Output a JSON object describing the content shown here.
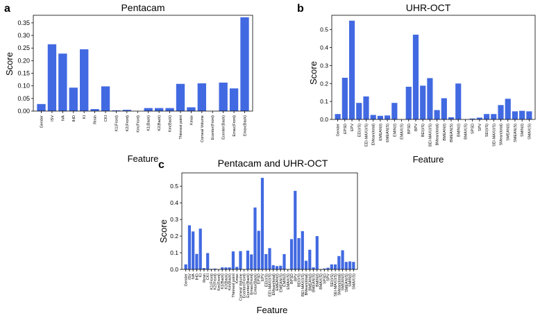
{
  "figure": {
    "bar_color": "#4169E1",
    "axis_color": "#000000",
    "background": "#ffffff"
  },
  "chart_data": [
    {
      "panel": "a",
      "type": "bar",
      "title": "Pentacam",
      "xlabel": "Feature",
      "ylabel": "Score",
      "ylim": [
        0,
        0.38
      ],
      "yticks": [
        "0.00",
        "0.05",
        "0.10",
        "0.15",
        "0.20",
        "0.25",
        "0.30",
        "0.35"
      ],
      "categories": [
        "Gender",
        "ISV",
        "IVA",
        "IHD",
        "KI",
        "Rmin",
        "CKI",
        "K1(Front)",
        "K2(Front)",
        "Km(Front)",
        "K1(Back)",
        "K2(Back)",
        "Km(Back)",
        "Thinnest point",
        "Kmax",
        "Corneal Volume",
        "Ecenter(Front)",
        "Ecenter(Back)",
        "Emax(Front)",
        "Emax(Back)"
      ],
      "values": [
        0.028,
        0.265,
        0.228,
        0.093,
        0.245,
        0.008,
        0.098,
        0.003,
        0.005,
        0.0,
        0.012,
        0.012,
        0.012,
        0.108,
        0.015,
        0.11,
        0.0,
        0.113,
        0.09,
        0.372
      ]
    },
    {
      "panel": "b",
      "type": "bar",
      "title": "UHR-OCT",
      "xlabel": "Feature",
      "ylabel": "Score",
      "ylim": [
        0,
        0.58
      ],
      "yticks": [
        "0.0",
        "0.1",
        "0.2",
        "0.3",
        "0.4",
        "0.5"
      ],
      "categories": [
        "Gender",
        "EPSD",
        "EPV",
        "EEI(I/S)",
        "EEI-MAX(I/S)",
        "EMean(total)",
        "EMEAN(I)",
        "EMEAN(S)",
        "EMIN(I)",
        "EMAX(S)",
        "BPSD",
        "BPV",
        "BEI(I/S)",
        "BEI-MAX(I/S)",
        "BMean(total)",
        "BMEAN(I)",
        "BMEAN(S)",
        "BMIN(I)",
        "BMAX(S)",
        "SPSD",
        "SPV",
        "SEI(I/S)",
        "SEI-MAX(I/S)",
        "SMean(total)",
        "SMEAN(I)",
        "SMEAN(S)",
        "SMIN(I)",
        "SMAX(S)"
      ],
      "values": [
        0.03,
        0.232,
        0.55,
        0.092,
        0.128,
        0.025,
        0.02,
        0.022,
        0.092,
        0.0,
        0.182,
        0.472,
        0.188,
        0.23,
        0.052,
        0.118,
        0.012,
        0.2,
        0.0,
        0.005,
        0.01,
        0.03,
        0.03,
        0.08,
        0.115,
        0.045,
        0.048,
        0.045
      ]
    },
    {
      "panel": "c",
      "type": "bar",
      "title": "Pentacam and UHR-OCT",
      "xlabel": "Feature",
      "ylabel": "Score",
      "ylim": [
        0,
        0.58
      ],
      "yticks": [
        "0.0",
        "0.1",
        "0.2",
        "0.3",
        "0.4",
        "0.5"
      ],
      "categories": [
        "Gender",
        "ISV",
        "IVA",
        "IHD",
        "KI",
        "Rmin",
        "CKI",
        "K1(Front)",
        "K2(Front)",
        "Km(Front)",
        "K1(Back)",
        "K2(Back)",
        "Km(Back)",
        "Thinnest point",
        "Kmax",
        "Corneal Volume",
        "Ecenter(Front)",
        "Ecenter(Back)",
        "Emax(Front)",
        "Emax(Back)",
        "EPSD",
        "EPV",
        "EEI(I/S)",
        "EEI-MAX(I/S)",
        "EMean(total)",
        "EMEAN(I)",
        "EMEAN(S)",
        "EMIN(I)",
        "EMAX(S)",
        "BPSD",
        "BPV",
        "BEI(I/S)",
        "BEI-MAX(I/S)",
        "BMean(total)",
        "BMEAN(I)",
        "BMEAN(S)",
        "BMIN(I)",
        "BMAX(S)",
        "SPSD",
        "SPV",
        "SEI(I/S)",
        "SEI-MAX(I/S)",
        "SMean(total)",
        "SMEAN(I)",
        "SMEAN(S)",
        "SMIN(I)",
        "SMAX(S)"
      ],
      "values": [
        0.03,
        0.265,
        0.228,
        0.093,
        0.245,
        0.008,
        0.098,
        0.003,
        0.005,
        0.0,
        0.012,
        0.012,
        0.012,
        0.108,
        0.015,
        0.11,
        0.0,
        0.113,
        0.09,
        0.372,
        0.232,
        0.55,
        0.092,
        0.128,
        0.025,
        0.02,
        0.022,
        0.092,
        0.0,
        0.182,
        0.472,
        0.188,
        0.23,
        0.052,
        0.118,
        0.012,
        0.2,
        0.0,
        0.005,
        0.01,
        0.03,
        0.03,
        0.08,
        0.115,
        0.045,
        0.048,
        0.045
      ]
    }
  ]
}
